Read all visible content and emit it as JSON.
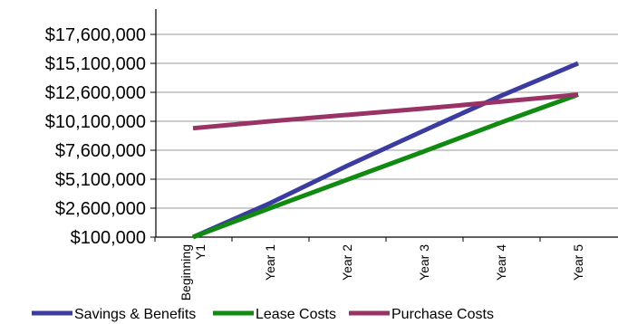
{
  "chart_data": {
    "type": "line",
    "title": "",
    "xlabel": "",
    "ylabel": "",
    "categories": [
      "Beginning Y1",
      "Year 1",
      "Year 2",
      "Year 3",
      "Year 4",
      "Year 5"
    ],
    "y_ticks": [
      "$100,000",
      "$2,600,000",
      "$5,100,000",
      "$7,600,000",
      "$10,100,000",
      "$12,600,000",
      "$15,100,000",
      "$17,600,000"
    ],
    "ylim": [
      100000,
      17600000
    ],
    "grid": "horizontal",
    "legend_position": "bottom",
    "series": [
      {
        "name": "Savings & Benefits",
        "color": "#3c3ca0",
        "values": [
          100000,
          3030000,
          6250000,
          9300000,
          12300000,
          15100000
        ]
      },
      {
        "name": "Lease Costs",
        "color": "#108a10",
        "values": [
          100000,
          2600000,
          5050000,
          7500000,
          10000000,
          12400000
        ]
      },
      {
        "name": "Purchase Costs",
        "color": "#993366",
        "values": [
          9500000,
          10100000,
          10650000,
          11200000,
          11800000,
          12400000
        ]
      }
    ]
  }
}
